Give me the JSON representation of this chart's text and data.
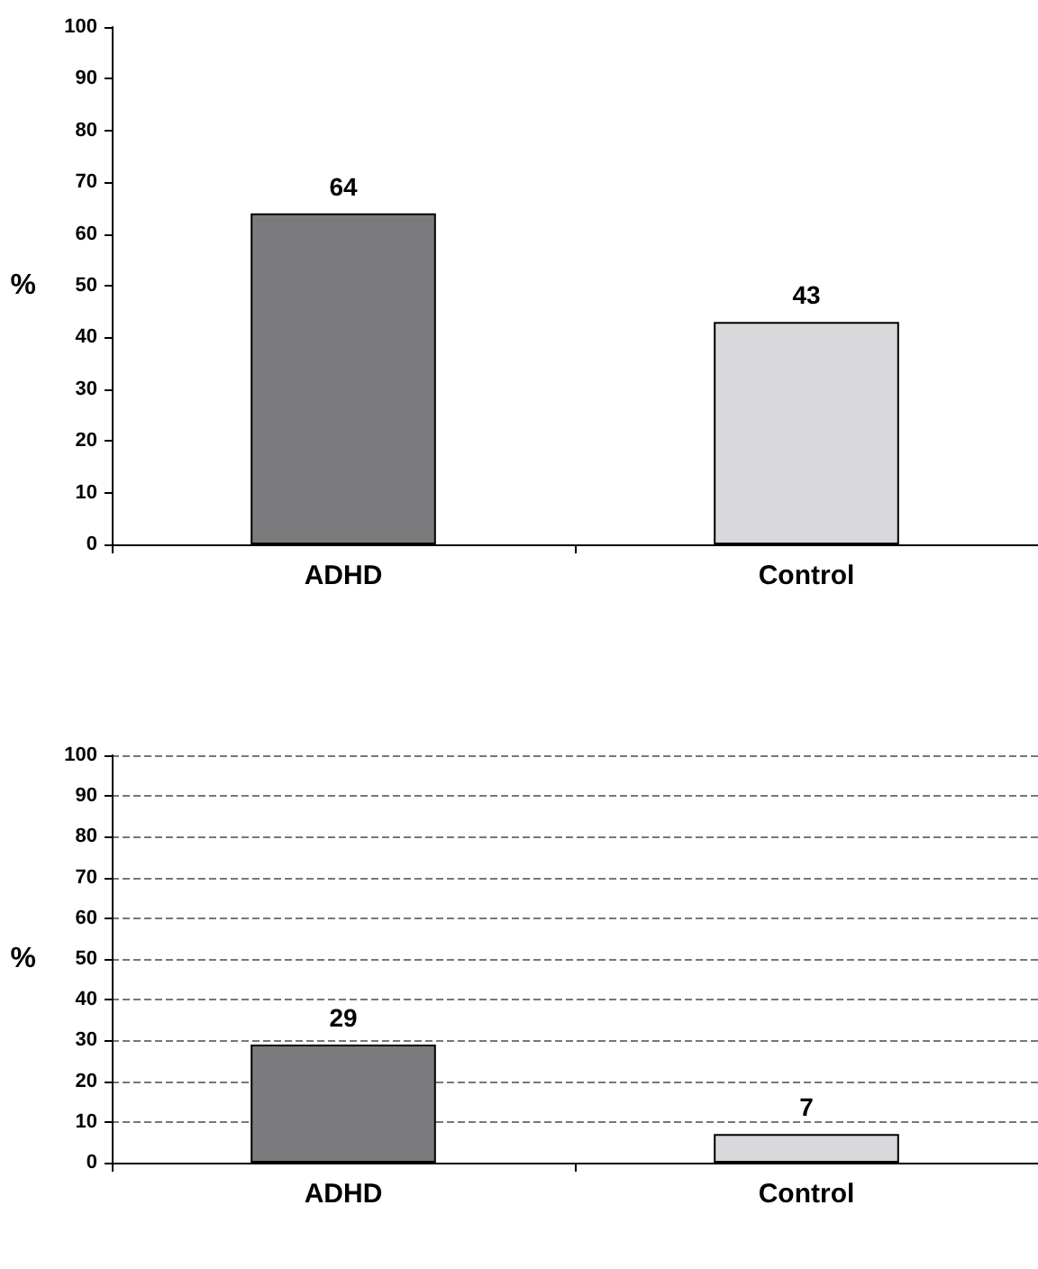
{
  "chart_data": [
    {
      "type": "bar",
      "ylabel": "%",
      "categories": [
        "ADHD",
        "Control"
      ],
      "values": [
        64,
        43
      ],
      "colors": [
        "#7b7b7d",
        "#d9d9db"
      ],
      "ylim": [
        0,
        100
      ],
      "yticks": [
        0,
        10,
        20,
        30,
        40,
        50,
        60,
        70,
        80,
        90,
        100
      ],
      "grid": false,
      "data_labels": true
    },
    {
      "type": "bar",
      "ylabel": "%",
      "categories": [
        "ADHD",
        "Control"
      ],
      "values": [
        29,
        7
      ],
      "colors": [
        "#7b7b7d",
        "#d9d9db"
      ],
      "ylim": [
        0,
        100
      ],
      "yticks": [
        0,
        10,
        20,
        30,
        40,
        50,
        60,
        70,
        80,
        90,
        100
      ],
      "grid": "y",
      "data_labels": true
    }
  ]
}
